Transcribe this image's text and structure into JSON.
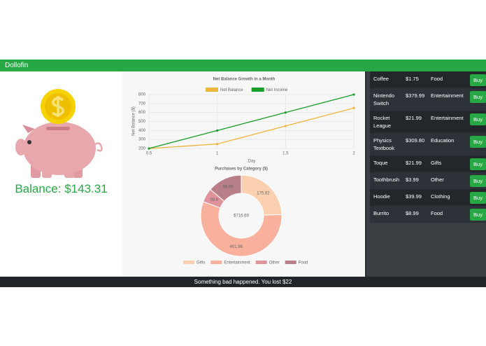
{
  "header": {
    "title": "Dollofin"
  },
  "balance": "Balance: $143.31",
  "chart_data": [
    {
      "type": "line",
      "title": "Net Balance Growth in a Month",
      "x_label": "Day",
      "y_label": "Net Balance ($)",
      "x": [
        0.5,
        1,
        1.5,
        2
      ],
      "xlim": [
        0.5,
        2
      ],
      "xticks": [
        0.5,
        1,
        1.5,
        2
      ],
      "ylim": [
        200,
        800
      ],
      "yticks": [
        200,
        300,
        400,
        500,
        600,
        700,
        800
      ],
      "grid": true,
      "legend": "top",
      "series": [
        {
          "name": "Net Balance",
          "color": "#f0b43c",
          "values": [
            200,
            250,
            450,
            650
          ]
        },
        {
          "name": "Net Income",
          "color": "#1a9e2a",
          "values": [
            200,
            400,
            600,
            800
          ]
        }
      ]
    },
    {
      "type": "donut",
      "title": "Purchases by Category ($)",
      "center_label": "$716.69",
      "legend": "bottom",
      "categories": [
        "Gifts",
        "Entertainment",
        "Other",
        "Food"
      ],
      "values": [
        175.92,
        401.98,
        39.9,
        98.89
      ],
      "colors": [
        "#fbd0b0",
        "#f9b09c",
        "#e0939a",
        "#b97f88"
      ]
    }
  ],
  "table": {
    "button": "Buy",
    "rows": [
      [
        "Coffee",
        "$1.75",
        "Food"
      ],
      [
        "Nintendo Switch",
        "$379.99",
        "Entertainment"
      ],
      [
        "Rocket League",
        "$21.99",
        "Entertainment"
      ],
      [
        "Physics Textbook",
        "$309.80",
        "Education"
      ],
      [
        "Toque",
        "$21.99",
        "Gifts"
      ],
      [
        "Toothbrush",
        "$3.99",
        "Other"
      ],
      [
        "Hoodie",
        "$39.99",
        "Clothing"
      ],
      [
        "Burrito",
        "$8.99",
        "Food"
      ]
    ]
  },
  "footer": "Something bad happened. You lost $22"
}
